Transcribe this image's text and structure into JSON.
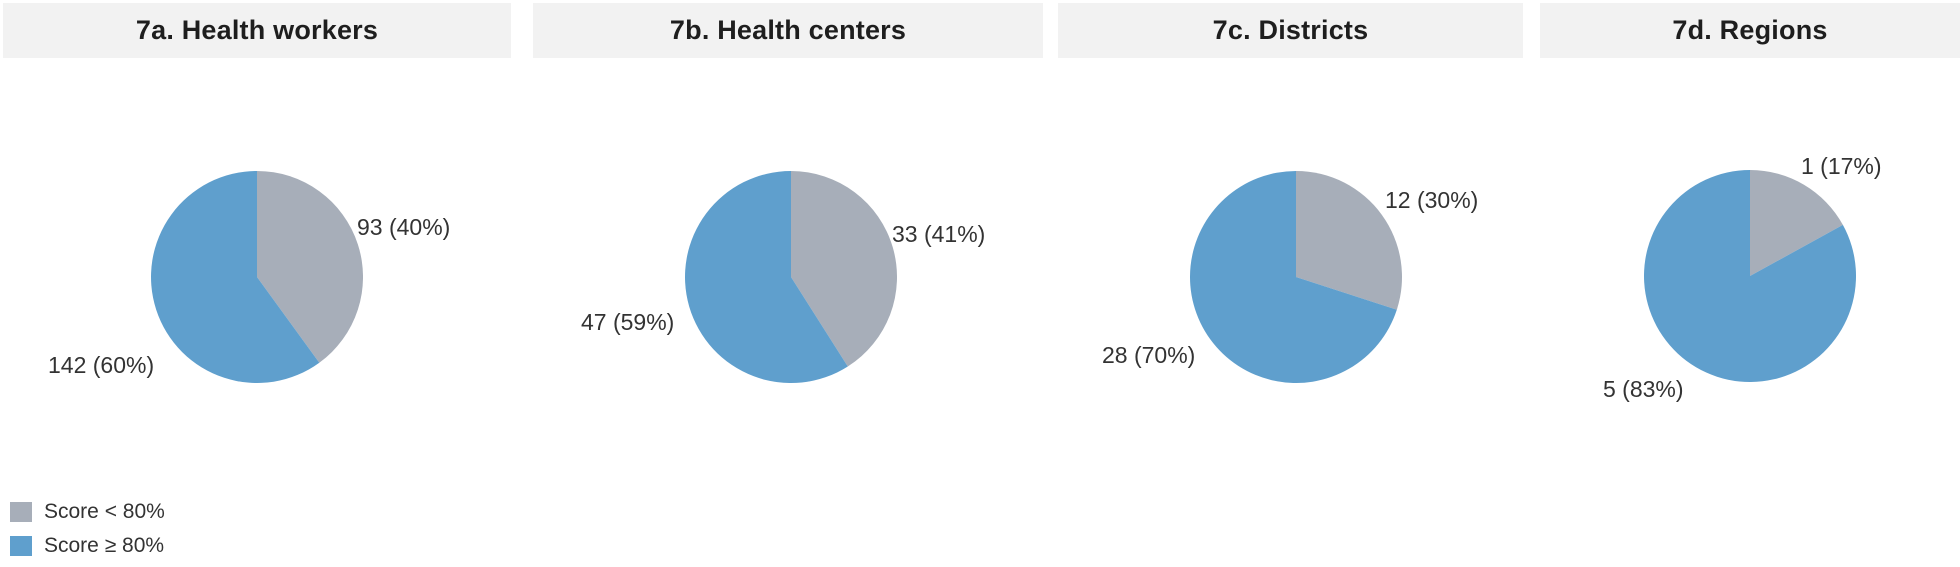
{
  "colors": {
    "score_below_80": "#A7AEB9",
    "score_above_80": "#5F9FCD",
    "band_background": "#F2F2F2",
    "title_text": "#1E1E1E",
    "label_text": "#333333"
  },
  "legend": {
    "items": [
      {
        "key": "below",
        "label": "Score < 80%"
      },
      {
        "key": "above",
        "label": "Score ≥ 80%"
      }
    ]
  },
  "chart_data": [
    {
      "type": "pie",
      "title": "7a. Health workers",
      "start_angle_deg": 0,
      "direction": "clockwise",
      "slices": [
        {
          "series": "Score < 80%",
          "count": 93,
          "percent": 40,
          "label": "93 (40%)"
        },
        {
          "series": "Score ≥ 80%",
          "count": 142,
          "percent": 60,
          "label": "142 (60%)"
        }
      ]
    },
    {
      "type": "pie",
      "title": "7b. Health centers",
      "start_angle_deg": 0,
      "direction": "clockwise",
      "slices": [
        {
          "series": "Score < 80%",
          "count": 33,
          "percent": 41,
          "label": "33 (41%)"
        },
        {
          "series": "Score ≥ 80%",
          "count": 47,
          "percent": 59,
          "label": "47 (59%)"
        }
      ]
    },
    {
      "type": "pie",
      "title": "7c. Districts",
      "start_angle_deg": 0,
      "direction": "clockwise",
      "slices": [
        {
          "series": "Score < 80%",
          "count": 12,
          "percent": 30,
          "label": "12 (30%)"
        },
        {
          "series": "Score ≥ 80%",
          "count": 28,
          "percent": 70,
          "label": "28 (70%)"
        }
      ]
    },
    {
      "type": "pie",
      "title": "7d. Regions",
      "start_angle_deg": 0,
      "direction": "clockwise",
      "slices": [
        {
          "series": "Score < 80%",
          "count": 1,
          "percent": 17,
          "label": "1 (17%)"
        },
        {
          "series": "Score ≥ 80%",
          "count": 5,
          "percent": 83,
          "label": "5 (83%)"
        }
      ]
    }
  ]
}
